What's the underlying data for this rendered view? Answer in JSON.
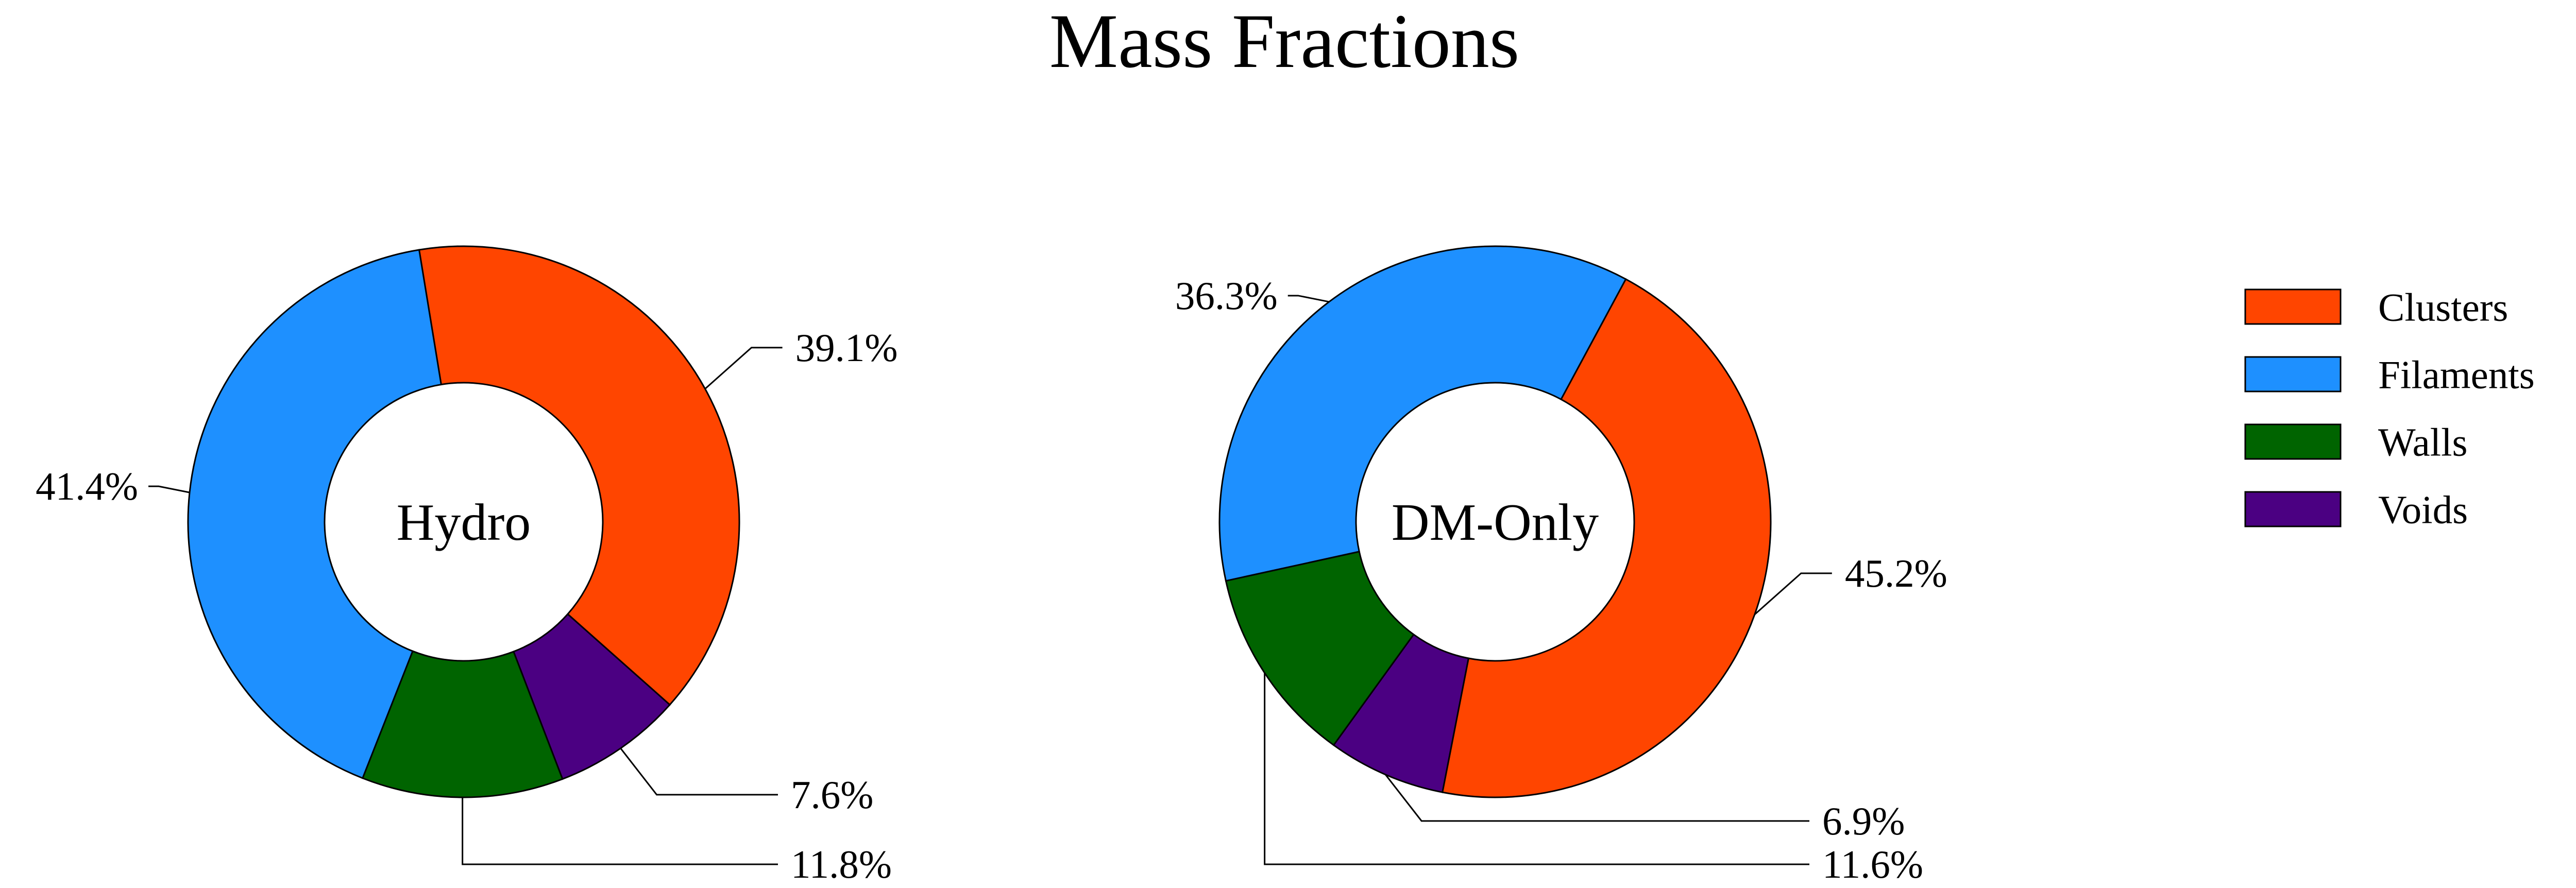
{
  "chart_data": {
    "type": "pie",
    "variant": "donut",
    "title": "Mass Fractions",
    "categories": [
      "Clusters",
      "Filaments",
      "Walls",
      "Voids"
    ],
    "colors": {
      "Clusters": "#FF4500",
      "Filaments": "#1E90FF",
      "Walls": "#006400",
      "Voids": "#4B0082"
    },
    "legend_position": "right",
    "charts": [
      {
        "name": "Hydro",
        "values": [
          {
            "category": "Clusters",
            "value": 39.1,
            "label": "39.1%"
          },
          {
            "category": "Filaments",
            "value": 41.4,
            "label": "41.4%"
          },
          {
            "category": "Walls",
            "value": 11.8,
            "label": "11.8%"
          },
          {
            "category": "Voids",
            "value": 7.6,
            "label": "7.6%"
          }
        ]
      },
      {
        "name": "DM-Only",
        "values": [
          {
            "category": "Clusters",
            "value": 45.2,
            "label": "45.2%"
          },
          {
            "category": "Filaments",
            "value": 36.3,
            "label": "36.3%"
          },
          {
            "category": "Walls",
            "value": 11.6,
            "label": "11.6%"
          },
          {
            "category": "Voids",
            "value": 6.9,
            "label": "6.9%"
          }
        ]
      }
    ]
  }
}
